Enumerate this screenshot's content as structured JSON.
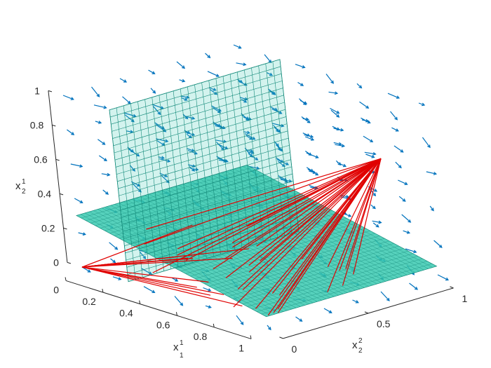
{
  "chart_data": {
    "type": "3d-surface-quiver",
    "axes": {
      "x": {
        "label": "x",
        "label_sub": "1",
        "label_sup": "1",
        "ticks": [
          "0",
          "0.2",
          "0.4",
          "0.6",
          "0.8",
          "1"
        ],
        "range": [
          0,
          1
        ]
      },
      "y": {
        "label": "x",
        "label_sub": "2",
        "label_sup": "2",
        "ticks": [
          "0",
          "0.5",
          "1"
        ],
        "range": [
          0,
          1
        ]
      },
      "z": {
        "label": "x",
        "label_sub": "2",
        "label_sup": "1",
        "ticks": [
          "0",
          "0.2",
          "0.4",
          "0.6",
          "0.8",
          "1"
        ],
        "range": [
          0,
          1
        ]
      }
    },
    "grid": false,
    "legend": false,
    "colors": {
      "vectors": "#0072BD",
      "surface": "#38C9B0",
      "surface_mesh": "#148A7A",
      "rays": "#E00000",
      "axis": "#262626"
    },
    "surfaces": [
      {
        "name": "horizontal sheet",
        "style": "mesh",
        "z_at_x0": 0.3,
        "z_at_x1": 0.05
      },
      {
        "name": "vertical sheet",
        "style": "mesh",
        "x": 0.25
      }
    ],
    "ray_sources": [
      {
        "x": 1,
        "y": 0.75,
        "z": 0.75
      },
      {
        "x": 0,
        "y": 0,
        "z": 0
      }
    ],
    "vector_field": "quiver on a regular grid in the unit cube"
  }
}
